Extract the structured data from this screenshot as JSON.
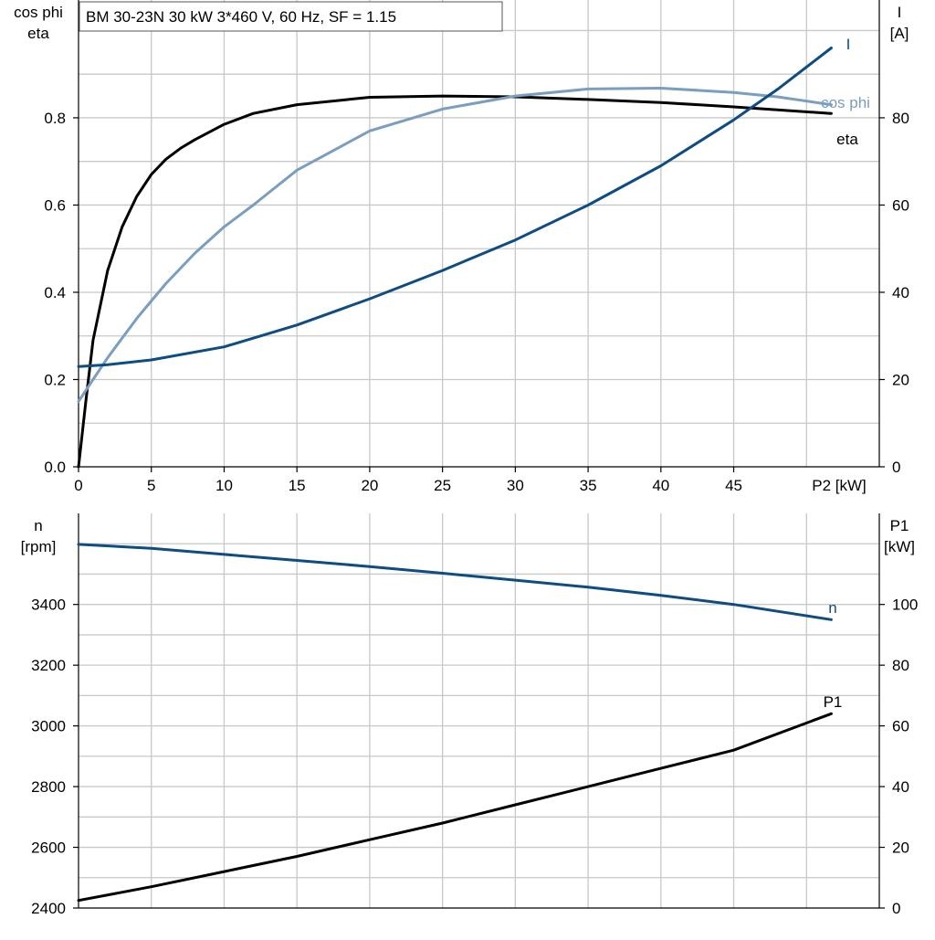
{
  "chart_data": [
    {
      "type": "line",
      "title": "BM 30-23N   30 kW   3*460 V, 60 Hz, SF = 1.15",
      "xlabel": "P2 [kW]",
      "ylabel_left": [
        "cos phi",
        "eta"
      ],
      "ylabel_right": [
        "I",
        "[A]"
      ],
      "xlim": [
        0,
        55
      ],
      "ylim_left": [
        0,
        1.07
      ],
      "ylim_right": [
        0,
        107
      ],
      "x_ticks": [
        0,
        5,
        10,
        15,
        20,
        25,
        30,
        35,
        40,
        45
      ],
      "x_tick_labels": [
        "0",
        "5",
        "10",
        "15",
        "20",
        "25",
        "30",
        "35",
        "40",
        "45"
      ],
      "y_left_ticks": [
        0,
        0.2,
        0.4,
        0.6,
        0.8
      ],
      "y_left_tick_labels": [
        "0.0",
        "0.2",
        "0.4",
        "0.6",
        "0.8"
      ],
      "y_right_ticks": [
        0,
        20,
        40,
        60,
        80
      ],
      "y_right_tick_labels": [
        "0",
        "20",
        "40",
        "60",
        "80"
      ],
      "grid": true,
      "series": [
        {
          "name": "eta",
          "axis": "left",
          "color": "#000000",
          "x": [
            0,
            0.5,
            1,
            2,
            3,
            4,
            5,
            6,
            7,
            8,
            10,
            12,
            15,
            20,
            25,
            30,
            35,
            40,
            45,
            51.7
          ],
          "y": [
            0,
            0.15,
            0.29,
            0.45,
            0.55,
            0.62,
            0.67,
            0.705,
            0.73,
            0.75,
            0.785,
            0.81,
            0.83,
            0.847,
            0.85,
            0.848,
            0.842,
            0.835,
            0.825,
            0.81
          ]
        },
        {
          "name": "cos phi",
          "axis": "left",
          "color": "#7a9ebf",
          "x": [
            0,
            1,
            2,
            3,
            4,
            5,
            6,
            8,
            10,
            12,
            15,
            20,
            25,
            30,
            35,
            40,
            45,
            48,
            51.7
          ],
          "y": [
            0.15,
            0.2,
            0.25,
            0.295,
            0.34,
            0.38,
            0.42,
            0.49,
            0.55,
            0.6,
            0.68,
            0.77,
            0.82,
            0.85,
            0.866,
            0.868,
            0.858,
            0.848,
            0.83
          ]
        },
        {
          "name": "I",
          "axis": "right",
          "color": "#0f4c81",
          "x": [
            0,
            2,
            5,
            10,
            15,
            20,
            25,
            30,
            35,
            40,
            45,
            48,
            51.7
          ],
          "y": [
            23,
            23.4,
            24.5,
            27.5,
            32.5,
            38.5,
            45,
            52,
            60,
            69,
            79.5,
            86.5,
            96
          ]
        }
      ],
      "annotations": [
        "eta",
        "cos phi",
        "I"
      ]
    },
    {
      "type": "line",
      "xlabel": "",
      "ylabel_left": [
        "n",
        "[rpm]"
      ],
      "ylabel_right": [
        "P1",
        "[kW]"
      ],
      "xlim": [
        0,
        55
      ],
      "ylim_left": [
        2400,
        3700
      ],
      "ylim_right": [
        0,
        130
      ],
      "y_left_ticks": [
        2400,
        2600,
        2800,
        3000,
        3200,
        3400
      ],
      "y_left_tick_labels": [
        "2400",
        "2600",
        "2800",
        "3000",
        "3200",
        "3400"
      ],
      "y_right_ticks": [
        0,
        20,
        40,
        60,
        80,
        100
      ],
      "y_right_tick_labels": [
        "0",
        "20",
        "40",
        "60",
        "80",
        "100"
      ],
      "grid": true,
      "series": [
        {
          "name": "n",
          "axis": "left",
          "color": "#0f4c81",
          "x": [
            0,
            5,
            10,
            15,
            20,
            25,
            30,
            35,
            40,
            45,
            51.7
          ],
          "y": [
            3598,
            3585,
            3565,
            3545,
            3525,
            3503,
            3480,
            3457,
            3430,
            3400,
            3350
          ]
        },
        {
          "name": "P1",
          "axis": "right",
          "color": "#000000",
          "x": [
            0,
            5,
            10,
            15,
            20,
            25,
            30,
            35,
            40,
            45,
            51.7
          ],
          "y": [
            2.5,
            7,
            12,
            17,
            22.5,
            28,
            34,
            40,
            46,
            52,
            64
          ]
        }
      ],
      "annotations": [
        "n",
        "P1"
      ]
    }
  ]
}
